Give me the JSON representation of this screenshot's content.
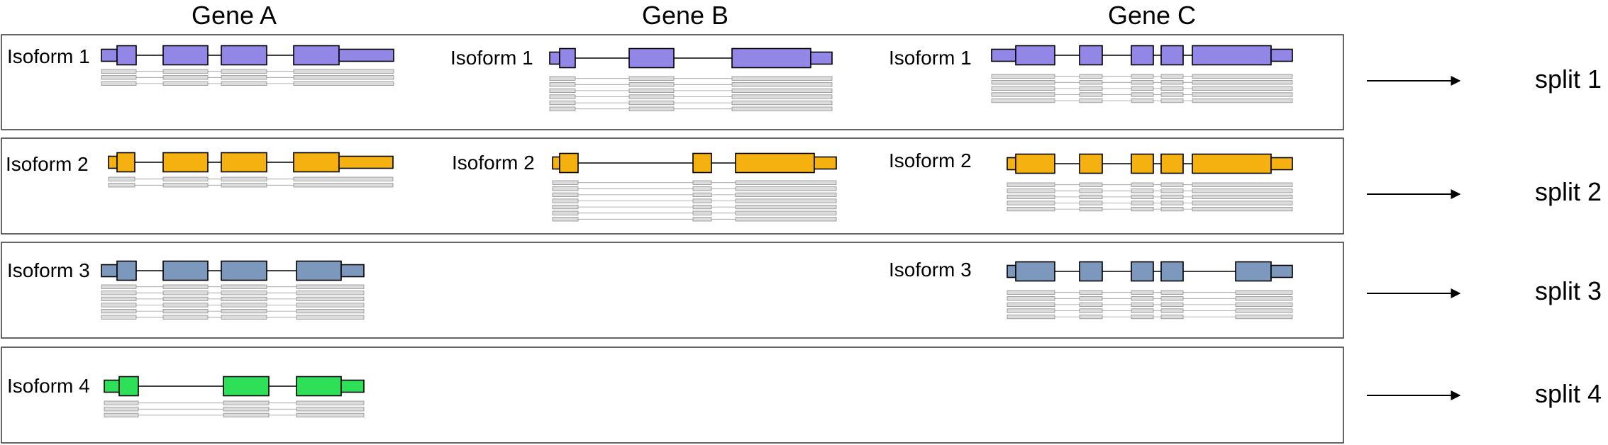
{
  "genes": [
    {
      "label": "Gene A"
    },
    {
      "label": "Gene B"
    },
    {
      "label": "Gene C"
    }
  ],
  "splits": [
    {
      "label": "split 1"
    },
    {
      "label": "split 2"
    },
    {
      "label": "split 3"
    },
    {
      "label": "split 4"
    }
  ],
  "colors": {
    "split_1": "#9287e6",
    "split_2": "#f5b10f",
    "split_3": "#7c98bc",
    "split_4": "#2ee058",
    "read": "#dcdcdc",
    "outline": "#000000"
  },
  "isoforms": [
    {
      "row": 0,
      "gene": "A",
      "label": "Isoform 1",
      "reads": 3
    },
    {
      "row": 0,
      "gene": "B",
      "label": "Isoform 1",
      "reads": 6
    },
    {
      "row": 0,
      "gene": "C",
      "label": "Isoform 1",
      "reads": 5
    },
    {
      "row": 1,
      "gene": "A",
      "label": "Isoform 2",
      "reads": 2
    },
    {
      "row": 1,
      "gene": "B",
      "label": "Isoform 2",
      "reads": 7
    },
    {
      "row": 1,
      "gene": "C",
      "label": "Isoform 2",
      "reads": 5
    },
    {
      "row": 2,
      "gene": "A",
      "label": "Isoform 3",
      "reads": 6
    },
    {
      "row": 2,
      "gene": "C",
      "label": "Isoform 3",
      "reads": 5
    },
    {
      "row": 3,
      "gene": "A",
      "label": "Isoform 4",
      "reads": 3
    }
  ]
}
